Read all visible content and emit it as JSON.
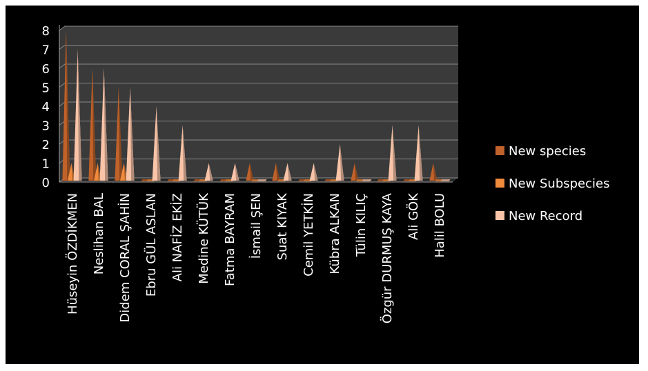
{
  "chart_data": {
    "type": "bar",
    "style": "3d-cone",
    "categories": [
      "Hüseyin ÖZDİKMEN",
      "Neslihan BAL",
      "Didem CORAL ŞAHİN",
      "Ebru GÜL ASLAN",
      "Ali NAFİZ EKİZ",
      "Medine KÜTÜK",
      "Fatma BAYRAM",
      "İsmail ŞEN",
      "Suat KIYAK",
      "Cemil YETKİN",
      "Kübra ALKAN",
      "Tülin KILIÇ",
      "Özgür DURMUŞ KAYA",
      "Ali GÖK",
      "Halil BOLU"
    ],
    "series": [
      {
        "name": "New species",
        "color": "#c0622a",
        "values": [
          8,
          6,
          5,
          0,
          0,
          0,
          0,
          1,
          1,
          0,
          0,
          1,
          0,
          0,
          1
        ]
      },
      {
        "name": "New Subspecies",
        "color": "#f08a3c",
        "values": [
          1,
          1,
          1,
          0,
          0,
          0,
          0,
          0,
          0,
          0,
          0,
          0,
          0,
          0,
          0
        ]
      },
      {
        "name": "New Record",
        "color": "#f9c4a8",
        "values": [
          7,
          6,
          5,
          4,
          3,
          1,
          1,
          0,
          1,
          1,
          2,
          0,
          3,
          3,
          0
        ]
      }
    ],
    "y_ticks": [
      "0",
      "1",
      "2",
      "3",
      "4",
      "5",
      "6",
      "7",
      "8"
    ],
    "ylim": [
      0,
      8
    ],
    "grid": true,
    "legend": "right",
    "background": "#000000",
    "wall_color": "#3a3a3a"
  }
}
